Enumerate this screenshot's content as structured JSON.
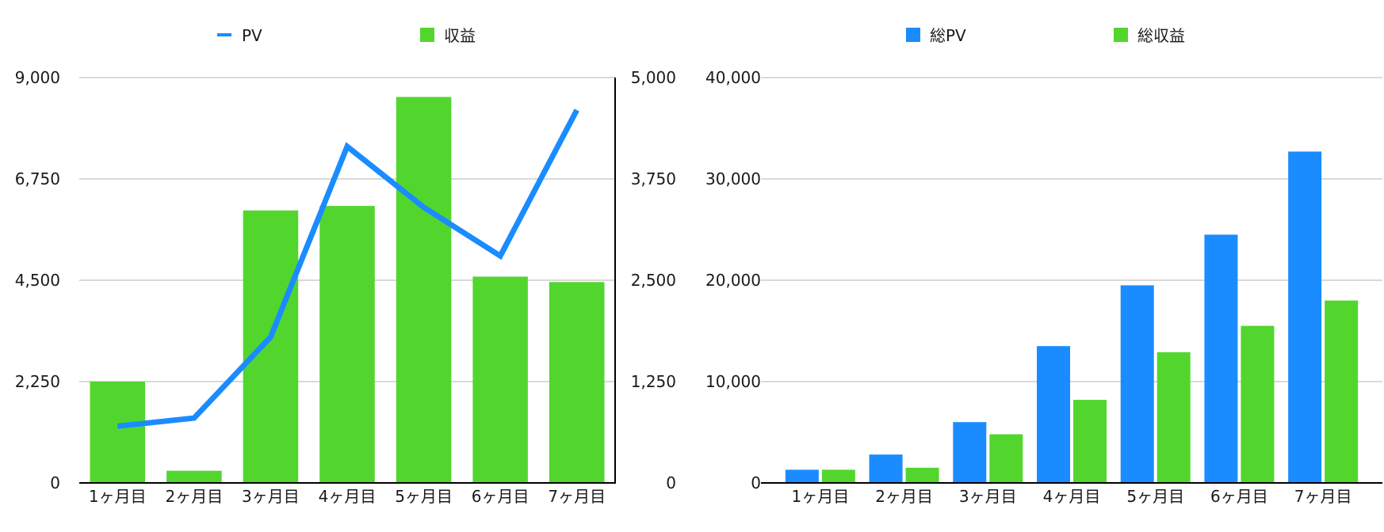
{
  "chart_data": [
    {
      "type": "bar",
      "categories": [
        "1ヶ月目",
        "2ヶ月目",
        "3ヶ月目",
        "4ヶ月目",
        "5ヶ月目",
        "6ヶ月目",
        "7ヶ月目"
      ],
      "series": [
        {
          "name": "PV",
          "kind": "line",
          "axis": "right",
          "color": "#1a8cff",
          "values": [
            700,
            800,
            1800,
            4150,
            3400,
            2800,
            4600
          ]
        },
        {
          "name": "収益",
          "kind": "bar",
          "axis": "left",
          "color": "#52d62e",
          "values": [
            2250,
            270,
            6050,
            6150,
            8570,
            4580,
            4460
          ]
        }
      ],
      "y_left": {
        "ylim": [
          0,
          9000
        ],
        "ticks": [
          "0",
          "2,250",
          "4,500",
          "6,750",
          "9,000"
        ]
      },
      "y_right": {
        "ylim": [
          0,
          5000
        ],
        "ticks": [
          "0",
          "1,250",
          "2,500",
          "3,750",
          "5,000"
        ]
      },
      "grid": true,
      "legend": "top"
    },
    {
      "type": "bar",
      "categories": [
        "1ヶ月目",
        "2ヶ月目",
        "3ヶ月目",
        "4ヶ月目",
        "5ヶ月目",
        "6ヶ月目",
        "7ヶ月目"
      ],
      "series": [
        {
          "name": "総PV",
          "color": "#1a8cff",
          "values": [
            1300,
            2800,
            6000,
            13500,
            19500,
            24500,
            32700
          ]
        },
        {
          "name": "総収益",
          "color": "#52d62e",
          "values": [
            1300,
            1500,
            4800,
            8200,
            12900,
            15500,
            18000
          ]
        }
      ],
      "y_left": {
        "ylim": [
          0,
          40000
        ],
        "ticks": [
          "0",
          "10,000",
          "20,000",
          "30,000",
          "40,000"
        ]
      },
      "grid": true,
      "legend": "top"
    }
  ]
}
